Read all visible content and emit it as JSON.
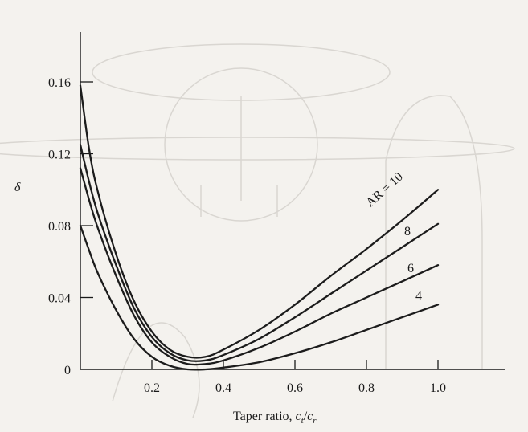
{
  "chart_data": {
    "type": "line",
    "title": "",
    "xlabel": "Taper ratio, c_t/c_r",
    "xlabel_main": "Taper ratio, ",
    "xlabel_var": "c",
    "xlabel_sub1": "t",
    "xlabel_slash": "/",
    "xlabel_sub2": "r",
    "ylabel": "δ",
    "xlim": [
      0,
      1.0
    ],
    "ylim": [
      0,
      0.16
    ],
    "xticks": [
      {
        "value": 0.2,
        "label": "0.2"
      },
      {
        "value": 0.4,
        "label": "0.4"
      },
      {
        "value": 0.6,
        "label": "0.6"
      },
      {
        "value": 0.8,
        "label": "0.8"
      },
      {
        "value": 1.0,
        "label": "1.0"
      }
    ],
    "yticks": [
      {
        "value": 0,
        "label": "0"
      },
      {
        "value": 0.04,
        "label": "0.04"
      },
      {
        "value": 0.08,
        "label": "0.08"
      },
      {
        "value": 0.12,
        "label": "0.12"
      },
      {
        "value": 0.16,
        "label": "0.16"
      }
    ],
    "series": [
      {
        "name": "AR = 10",
        "label": "AR = 10",
        "x": [
          0.0,
          0.025,
          0.05,
          0.1,
          0.15,
          0.2,
          0.25,
          0.3,
          0.35,
          0.4,
          0.5,
          0.6,
          0.7,
          0.8,
          0.9,
          1.0
        ],
        "y": [
          0.158,
          0.122,
          0.098,
          0.064,
          0.038,
          0.021,
          0.011,
          0.007,
          0.007,
          0.011,
          0.022,
          0.036,
          0.052,
          0.067,
          0.083,
          0.1
        ]
      },
      {
        "name": "8",
        "label": "8",
        "x": [
          0.0,
          0.025,
          0.05,
          0.1,
          0.15,
          0.2,
          0.25,
          0.3,
          0.35,
          0.4,
          0.5,
          0.6,
          0.7,
          0.8,
          0.9,
          1.0
        ],
        "y": [
          0.125,
          0.104,
          0.086,
          0.058,
          0.034,
          0.018,
          0.009,
          0.005,
          0.005,
          0.008,
          0.017,
          0.029,
          0.042,
          0.055,
          0.068,
          0.081
        ]
      },
      {
        "name": "6",
        "label": "6",
        "x": [
          0.0,
          0.025,
          0.05,
          0.1,
          0.15,
          0.2,
          0.25,
          0.3,
          0.35,
          0.4,
          0.5,
          0.6,
          0.7,
          0.8,
          0.9,
          1.0
        ],
        "y": [
          0.112,
          0.094,
          0.078,
          0.052,
          0.03,
          0.015,
          0.007,
          0.003,
          0.003,
          0.005,
          0.012,
          0.021,
          0.031,
          0.04,
          0.049,
          0.058
        ]
      },
      {
        "name": "4",
        "label": "4",
        "x": [
          0.0,
          0.025,
          0.05,
          0.1,
          0.15,
          0.2,
          0.25,
          0.3,
          0.35,
          0.4,
          0.5,
          0.6,
          0.7,
          0.8,
          0.9,
          1.0
        ],
        "y": [
          0.08,
          0.066,
          0.053,
          0.033,
          0.017,
          0.007,
          0.002,
          0.0,
          0.0,
          0.001,
          0.004,
          0.009,
          0.015,
          0.022,
          0.029,
          0.036
        ]
      }
    ],
    "grid": false,
    "legend": "inline labels at curve ends"
  }
}
